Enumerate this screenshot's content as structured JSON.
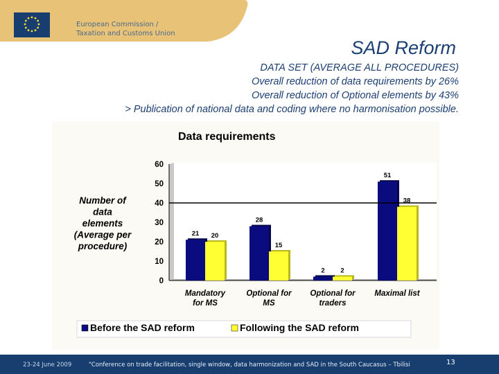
{
  "header": {
    "org_line1": "European Commission /",
    "org_line2": "Taxation and Customs Union",
    "slide_title": "SAD Reform",
    "subtitle_lines": [
      "DATA SET (AVERAGE ALL PROCEDURES)",
      "Overall reduction of data requirements by 26%",
      "Overall reduction of Optional elements by 43%",
      "> Publication of national data and coding where no harmonisation possible."
    ]
  },
  "colors": {
    "banner": "#e8c276",
    "navy": "#173e6e",
    "series_before": "#0b0b80",
    "series_after": "#ffff33"
  },
  "chart_data": {
    "type": "bar",
    "title": "Data requirements",
    "ylabel_lines": [
      "Number of",
      "data",
      "elements",
      "(Average per",
      "procedure)"
    ],
    "categories": [
      [
        "Mandatory",
        "for MS"
      ],
      [
        "Optional for",
        "MS"
      ],
      [
        "Optional for",
        "traders"
      ],
      [
        "Maximal list"
      ]
    ],
    "series": [
      {
        "name": "Before the SAD reform",
        "values": [
          21,
          28,
          2,
          51
        ]
      },
      {
        "name": "Following the SAD reform",
        "values": [
          20,
          15,
          2,
          38
        ]
      }
    ],
    "ylim": [
      0,
      60
    ],
    "yticks": [
      "0",
      "10",
      "20",
      "30",
      "40",
      "50",
      "60"
    ],
    "reference_line": 40,
    "legend_position": "bottom"
  },
  "footer": {
    "date": "23-24 June 2009",
    "conference": "\"Conference on trade facilitation, single window, data harmonization and SAD in the South Caucasus – Tbilisi",
    "page": "13"
  }
}
